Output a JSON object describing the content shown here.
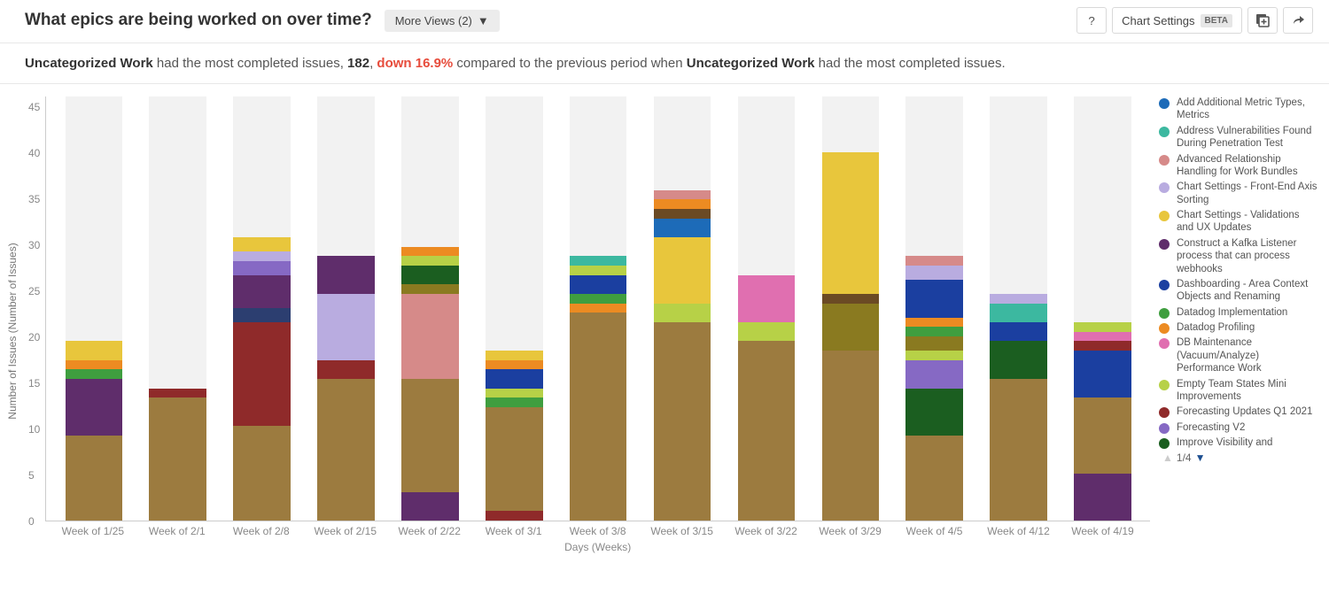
{
  "header": {
    "title": "What epics are being worked on over time?",
    "more_views_label": "More Views (2)",
    "help_label": "?",
    "chart_settings_label": "Chart Settings",
    "beta_label": "BETA"
  },
  "summary": {
    "prefix_bold": "Uncategorized Work",
    "text1": " had the most completed issues, ",
    "count": "182",
    "sep": ", ",
    "delta": "down 16.9%",
    "text2": " compared to the previous period when ",
    "suffix_bold": "Uncategorized Work",
    "text3": " had the most completed issues."
  },
  "chart": {
    "type": "stacked-bar",
    "x_axis_title": "Days (Weeks)",
    "y_axis_title": "Number of Issues (Number of Issues)",
    "ylim_max": 45,
    "y_ticks": [
      0,
      5,
      10,
      15,
      20,
      25,
      30,
      35,
      40,
      45
    ],
    "plot_bg": "#ffffff",
    "bar_bg": "#f2f2f2",
    "categories": [
      "Week of 1/25",
      "Week of 2/1",
      "Week of 2/8",
      "Week of 2/15",
      "Week of 2/22",
      "Week of 3/1",
      "Week of 3/8",
      "Week of 3/15",
      "Week of 3/22",
      "Week of 3/29",
      "Week of 4/5",
      "Week of 4/12",
      "Week of 4/19"
    ],
    "series_colors": {
      "uncategorized": "#9c7b3f",
      "forecasting_q1": "#8f2a2a",
      "construct_kafka": "#5f2d6b",
      "forecasting_v2": "#8669c4",
      "chart_frontend_axis": "#b9ace0",
      "chart_validations_ux": "#e8c63c",
      "add_metric_types": "#1d6bb8",
      "address_vuln": "#3cb8a0",
      "advanced_rel": "#d68a89",
      "datadog_impl": "#3f9e3f",
      "datadog_prof": "#ec8b22",
      "db_maint": "#e06fb0",
      "empty_team": "#b7d147",
      "dashboarding": "#1b3fa0",
      "improve_visibility": "#1b5e20",
      "navy": "#2c3e70",
      "olive": "#8a7a20",
      "brown_dk": "#6b4a24"
    },
    "stacks": [
      [
        [
          "uncategorized",
          9
        ],
        [
          "construct_kafka",
          6
        ],
        [
          "datadog_impl",
          1
        ],
        [
          "datadog_prof",
          1
        ],
        [
          "chart_validations_ux",
          2
        ]
      ],
      [
        [
          "uncategorized",
          13
        ],
        [
          "forecasting_q1",
          1
        ]
      ],
      [
        [
          "uncategorized",
          10
        ],
        [
          "forecasting_q1",
          11
        ],
        [
          "navy",
          1.5
        ],
        [
          "construct_kafka",
          3.5
        ],
        [
          "forecasting_v2",
          1.5
        ],
        [
          "chart_frontend_axis",
          1
        ],
        [
          "chart_validations_ux",
          1.5
        ]
      ],
      [
        [
          "uncategorized",
          15
        ],
        [
          "forecasting_q1",
          2
        ],
        [
          "chart_frontend_axis",
          7
        ],
        [
          "construct_kafka",
          4
        ]
      ],
      [
        [
          "construct_kafka",
          3
        ],
        [
          "uncategorized",
          12
        ],
        [
          "advanced_rel",
          9
        ],
        [
          "olive",
          1
        ],
        [
          "improve_visibility",
          2
        ],
        [
          "empty_team",
          1
        ],
        [
          "datadog_prof",
          1
        ]
      ],
      [
        [
          "forecasting_q1",
          1
        ],
        [
          "uncategorized",
          11
        ],
        [
          "datadog_impl",
          1
        ],
        [
          "empty_team",
          1
        ],
        [
          "dashboarding",
          2
        ],
        [
          "datadog_prof",
          1
        ],
        [
          "chart_validations_ux",
          1
        ]
      ],
      [
        [
          "uncategorized",
          22
        ],
        [
          "datadog_prof",
          1
        ],
        [
          "datadog_impl",
          1
        ],
        [
          "dashboarding",
          2
        ],
        [
          "empty_team",
          1
        ],
        [
          "address_vuln",
          1
        ]
      ],
      [
        [
          "uncategorized",
          21
        ],
        [
          "empty_team",
          2
        ],
        [
          "chart_validations_ux",
          7
        ],
        [
          "add_metric_types",
          2
        ],
        [
          "brown_dk",
          1
        ],
        [
          "datadog_prof",
          1
        ],
        [
          "advanced_rel",
          1
        ]
      ],
      [
        [
          "uncategorized",
          19
        ],
        [
          "empty_team",
          2
        ],
        [
          "db_maint",
          5
        ]
      ],
      [
        [
          "uncategorized",
          18
        ],
        [
          "olive",
          5
        ],
        [
          "brown_dk",
          1
        ],
        [
          "chart_validations_ux",
          15
        ]
      ],
      [
        [
          "uncategorized",
          9
        ],
        [
          "improve_visibility",
          5
        ],
        [
          "forecasting_v2",
          3
        ],
        [
          "empty_team",
          1
        ],
        [
          "olive",
          1.5
        ],
        [
          "datadog_impl",
          1
        ],
        [
          "datadog_prof",
          1
        ],
        [
          "dashboarding",
          4
        ],
        [
          "chart_frontend_axis",
          1.5
        ],
        [
          "advanced_rel",
          1
        ]
      ],
      [
        [
          "uncategorized",
          15
        ],
        [
          "improve_visibility",
          4
        ],
        [
          "dashboarding",
          2
        ],
        [
          "address_vuln",
          2
        ],
        [
          "chart_frontend_axis",
          1
        ]
      ],
      [
        [
          "construct_kafka",
          5
        ],
        [
          "uncategorized",
          8
        ],
        [
          "dashboarding",
          5
        ],
        [
          "forecasting_q1",
          1
        ],
        [
          "db_maint",
          1
        ],
        [
          "empty_team",
          1
        ]
      ]
    ]
  },
  "legend": {
    "items": [
      {
        "key": "add_metric_types",
        "label": "Add Additional Metric Types, Metrics"
      },
      {
        "key": "address_vuln",
        "label": "Address Vulnerabilities Found During Penetration Test"
      },
      {
        "key": "advanced_rel",
        "label": "Advanced Relationship Handling for Work Bundles"
      },
      {
        "key": "chart_frontend_axis",
        "label": "Chart Settings - Front-End Axis Sorting"
      },
      {
        "key": "chart_validations_ux",
        "label": "Chart Settings - Validations and UX Updates"
      },
      {
        "key": "construct_kafka",
        "label": "Construct a Kafka Listener process that can process webhooks"
      },
      {
        "key": "dashboarding",
        "label": "Dashboarding - Area Context Objects and Renaming"
      },
      {
        "key": "datadog_impl",
        "label": "Datadog Implementation"
      },
      {
        "key": "datadog_prof",
        "label": "Datadog Profiling"
      },
      {
        "key": "db_maint",
        "label": "DB Maintenance (Vacuum/Analyze) Performance Work"
      },
      {
        "key": "empty_team",
        "label": "Empty Team States Mini Improvements"
      },
      {
        "key": "forecasting_q1",
        "label": "Forecasting Updates Q1 2021"
      },
      {
        "key": "forecasting_v2",
        "label": "Forecasting V2"
      },
      {
        "key": "improve_visibility",
        "label": "Improve Visibility and"
      }
    ],
    "pager": "1/4"
  }
}
